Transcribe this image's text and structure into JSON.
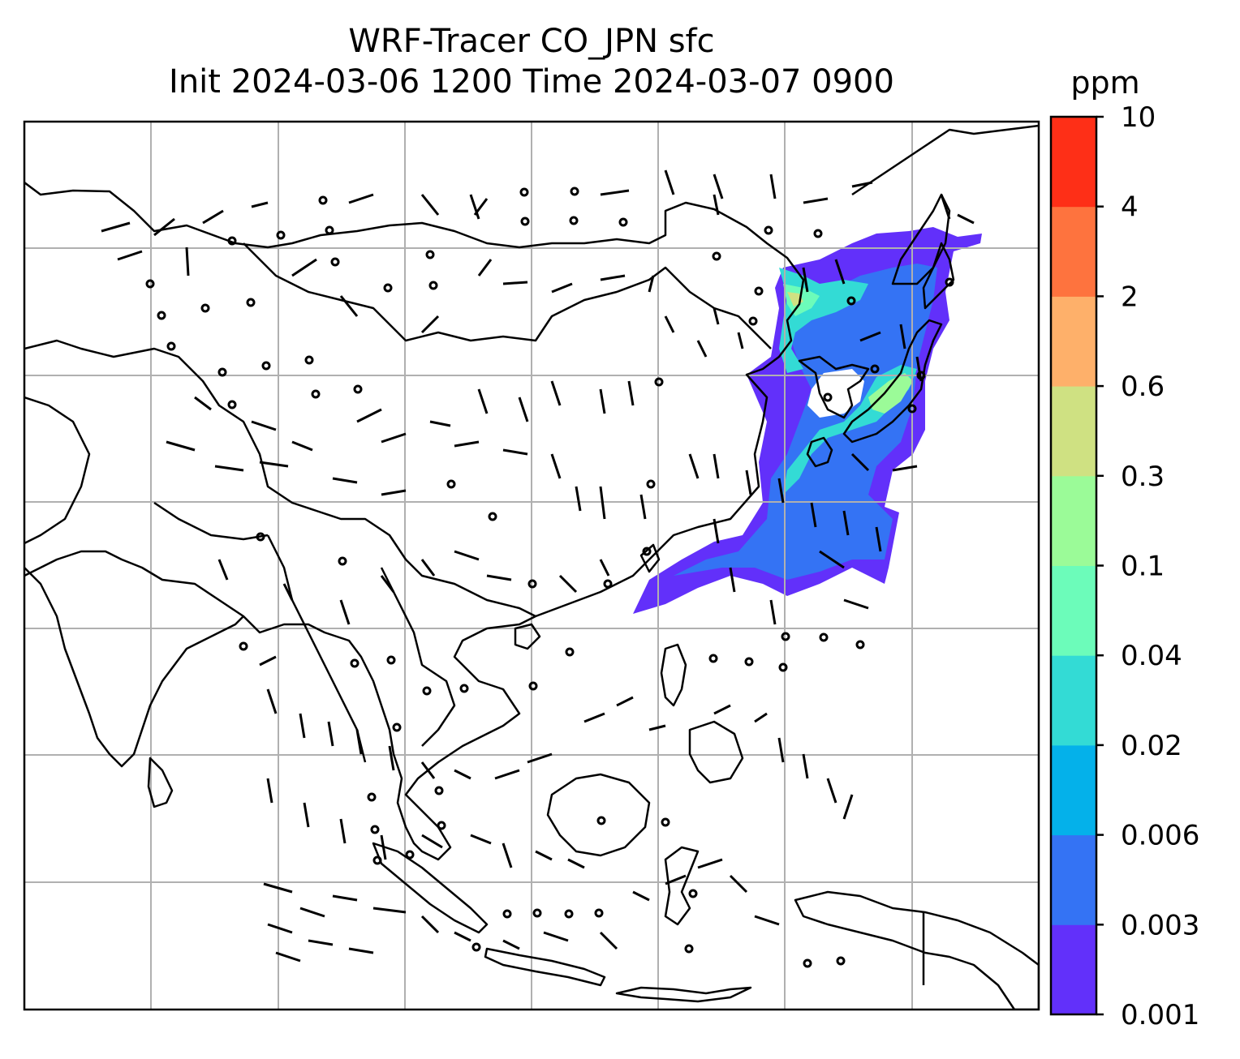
{
  "title": {
    "line1": "WRF-Tracer CO_JPN sfc",
    "line2": "Init 2024-03-06 1200 Time 2024-03-07 0900"
  },
  "map": {
    "variable": "CO_JPN tracer",
    "level": "sfc",
    "gridlines": true,
    "wind_barbs": true,
    "coastlines": true
  },
  "colorbar": {
    "unit": "ppm",
    "ticks": [
      "0.001",
      "0.003",
      "0.006",
      "0.02",
      "0.04",
      "0.1",
      "0.3",
      "0.6",
      "2",
      "4",
      "10"
    ],
    "colors": [
      "#6230fa",
      "#3473f4",
      "#04b1ea",
      "#33dbd5",
      "#6cfcba",
      "#9bfb98",
      "#cfe182",
      "#feb06a",
      "#fe733e",
      "#fe2f17"
    ]
  }
}
